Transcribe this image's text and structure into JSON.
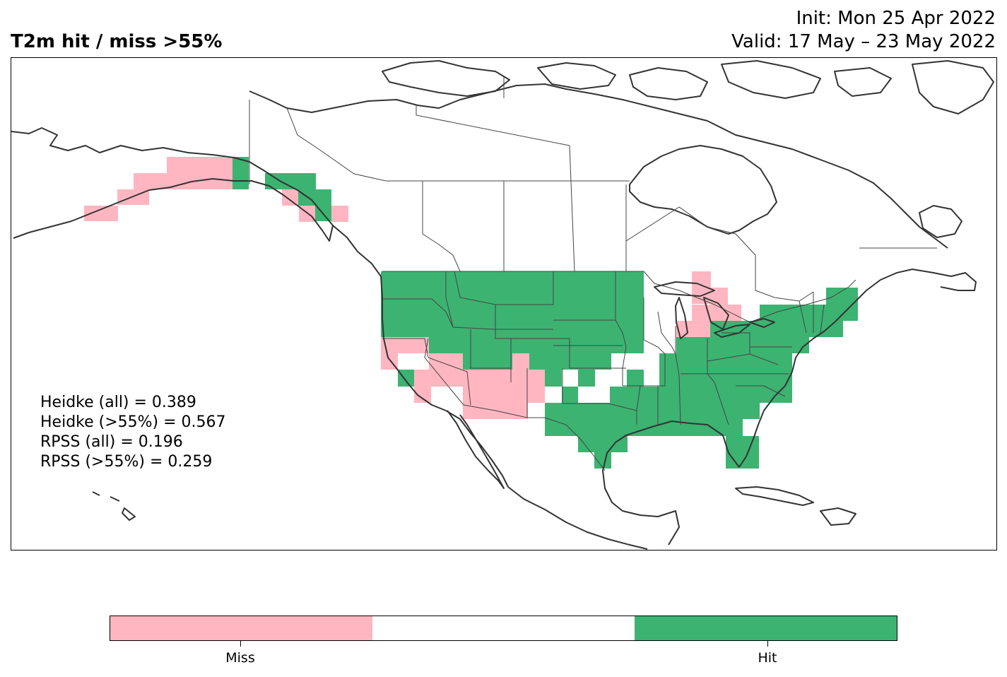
{
  "header": {
    "title": "T2m hit / miss  >55%",
    "init_line": "Init: Mon 25 Apr 2022",
    "valid_line": "Valid: 17 May – 23 May 2022"
  },
  "stats": {
    "heidke_all": "Heidke (all) = 0.389",
    "heidke_55": "Heidke (>55%) = 0.567",
    "rpss_all": "RPSS (all) = 0.196",
    "rpss_55": "RPSS (>55%) = 0.259"
  },
  "legend": {
    "categories": [
      {
        "label": "Miss",
        "color": "#ffb6c1"
      },
      {
        "label": "",
        "color": "#ffffff"
      },
      {
        "label": "Hit",
        "color": "#3cb371"
      }
    ]
  },
  "colors": {
    "miss": "#ffb6c1",
    "hit": "#3cb371",
    "coastline": "#333333",
    "border": "#444444"
  },
  "map": {
    "region": "North America",
    "cell_categories": [
      "miss",
      "hit"
    ]
  }
}
